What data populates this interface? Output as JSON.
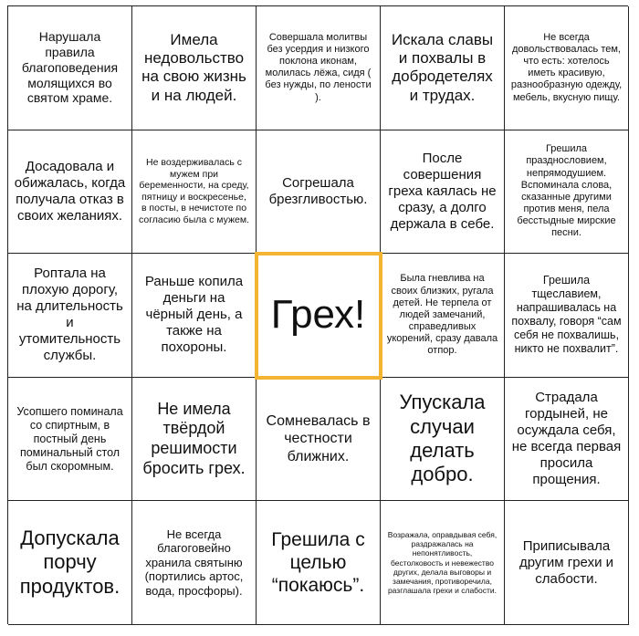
{
  "cells": [
    [
      "Нарушала правила благоповедения молящихся во святом храме.",
      "Имела недовольство на свою жизнь и на людей.",
      "Совершала молитвы без усердия и низкого поклона иконам, молилась лёжа, сидя ( без нужды, по лености ).",
      "Искала славы и похвалы в добродетелях и трудах.",
      "Не всегда довольствовалась тем, что есть: хотелось иметь красивую, разнообразную одежду, мебель, вкусную пищу."
    ],
    [
      "Досадовала и обижалась, когда получала отказ в своих желаниях.",
      "Не воздерживалась с мужем при беременности, на среду, пятницу и воскресенье, в посты, в нечистоте по согласию была с мужем.",
      "Согрешала брезгливостью.",
      "После совершения греха каялась не сразу, а долго держала в себе.",
      "Грешила празднословием, непрямодушием. Вспоминала слова, сказанные другими против меня, пела бесстыдные мирские песни."
    ],
    [
      "Роптала на плохую дорогу, на длительность и утомительность службы.",
      "Раньше копила деньги на чёрный день, а также на похороны.",
      "Грех!",
      "Была гневлива на своих близких, ругала детей. Не терпела от людей замечаний, справедливых укорений, сразу давала отпор.",
      "Грешила тщеславием, напрашивалась на похвалу, говоря “сам себя не похвалишь, никто не похвалит”."
    ],
    [
      "Усопшего поминала со спиртным, в постный день поминальный стол был скоромным.",
      "Не имела твёрдой решимости бросить грех.",
      "Сомневалась в честности ближних.",
      "Упускала случаи делать добро.",
      "Страдала гордыней, не осуждала себя, не всегда первая просила прощения."
    ],
    [
      "Допускала порчу продуктов.",
      "Не всегда благоговейно хранила святыню (портились артос, вода, просфоры).",
      "Грешила с целью “покаюсь”.",
      "Возражала, оправдывая себя, раздражалась на непонятливость, бестолковость и невежество других, делала выговоры и замечания, противоречила, разглашала грехи и слабости.",
      "Приписывала другим грехи и слабости."
    ]
  ]
}
